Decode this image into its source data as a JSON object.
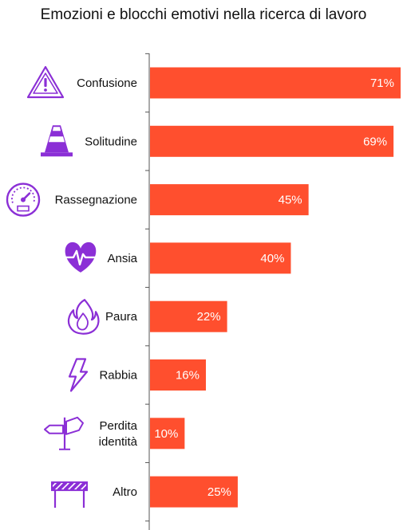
{
  "chart_data": {
    "type": "bar",
    "orientation": "horizontal",
    "title": "Emozioni e blocchi emotivi nella ricerca di lavoro",
    "categories": [
      "Confusione",
      "Solitudine",
      "Rassegnazione",
      "Ansia",
      "Paura",
      "Rabbia",
      "Perdita identità",
      "Altro"
    ],
    "category_lines": [
      [
        "Confusione"
      ],
      [
        "Solitudine"
      ],
      [
        "Rassegnazione"
      ],
      [
        "Ansia"
      ],
      [
        "Paura"
      ],
      [
        "Rabbia"
      ],
      [
        "Perdita",
        "identità"
      ],
      [
        "Altro"
      ]
    ],
    "values": [
      71,
      69,
      45,
      40,
      22,
      16,
      10,
      25
    ],
    "value_labels": [
      "71%",
      "69%",
      "45%",
      "40%",
      "22%",
      "16%",
      "10%",
      "25%"
    ],
    "icons": [
      "warning-triangle-icon",
      "traffic-cone-icon",
      "speedometer-icon",
      "heartbeat-icon",
      "flame-icon",
      "lightning-icon",
      "signpost-icon",
      "barrier-icon"
    ],
    "xlim": [
      0,
      71
    ],
    "xlabel": "",
    "ylabel": "",
    "grid": false,
    "legend": "none"
  },
  "colors": {
    "bar": "#ff4f2e",
    "icon": "#8b2fd6",
    "axis": "#555555",
    "value_text": "#ffffff"
  }
}
